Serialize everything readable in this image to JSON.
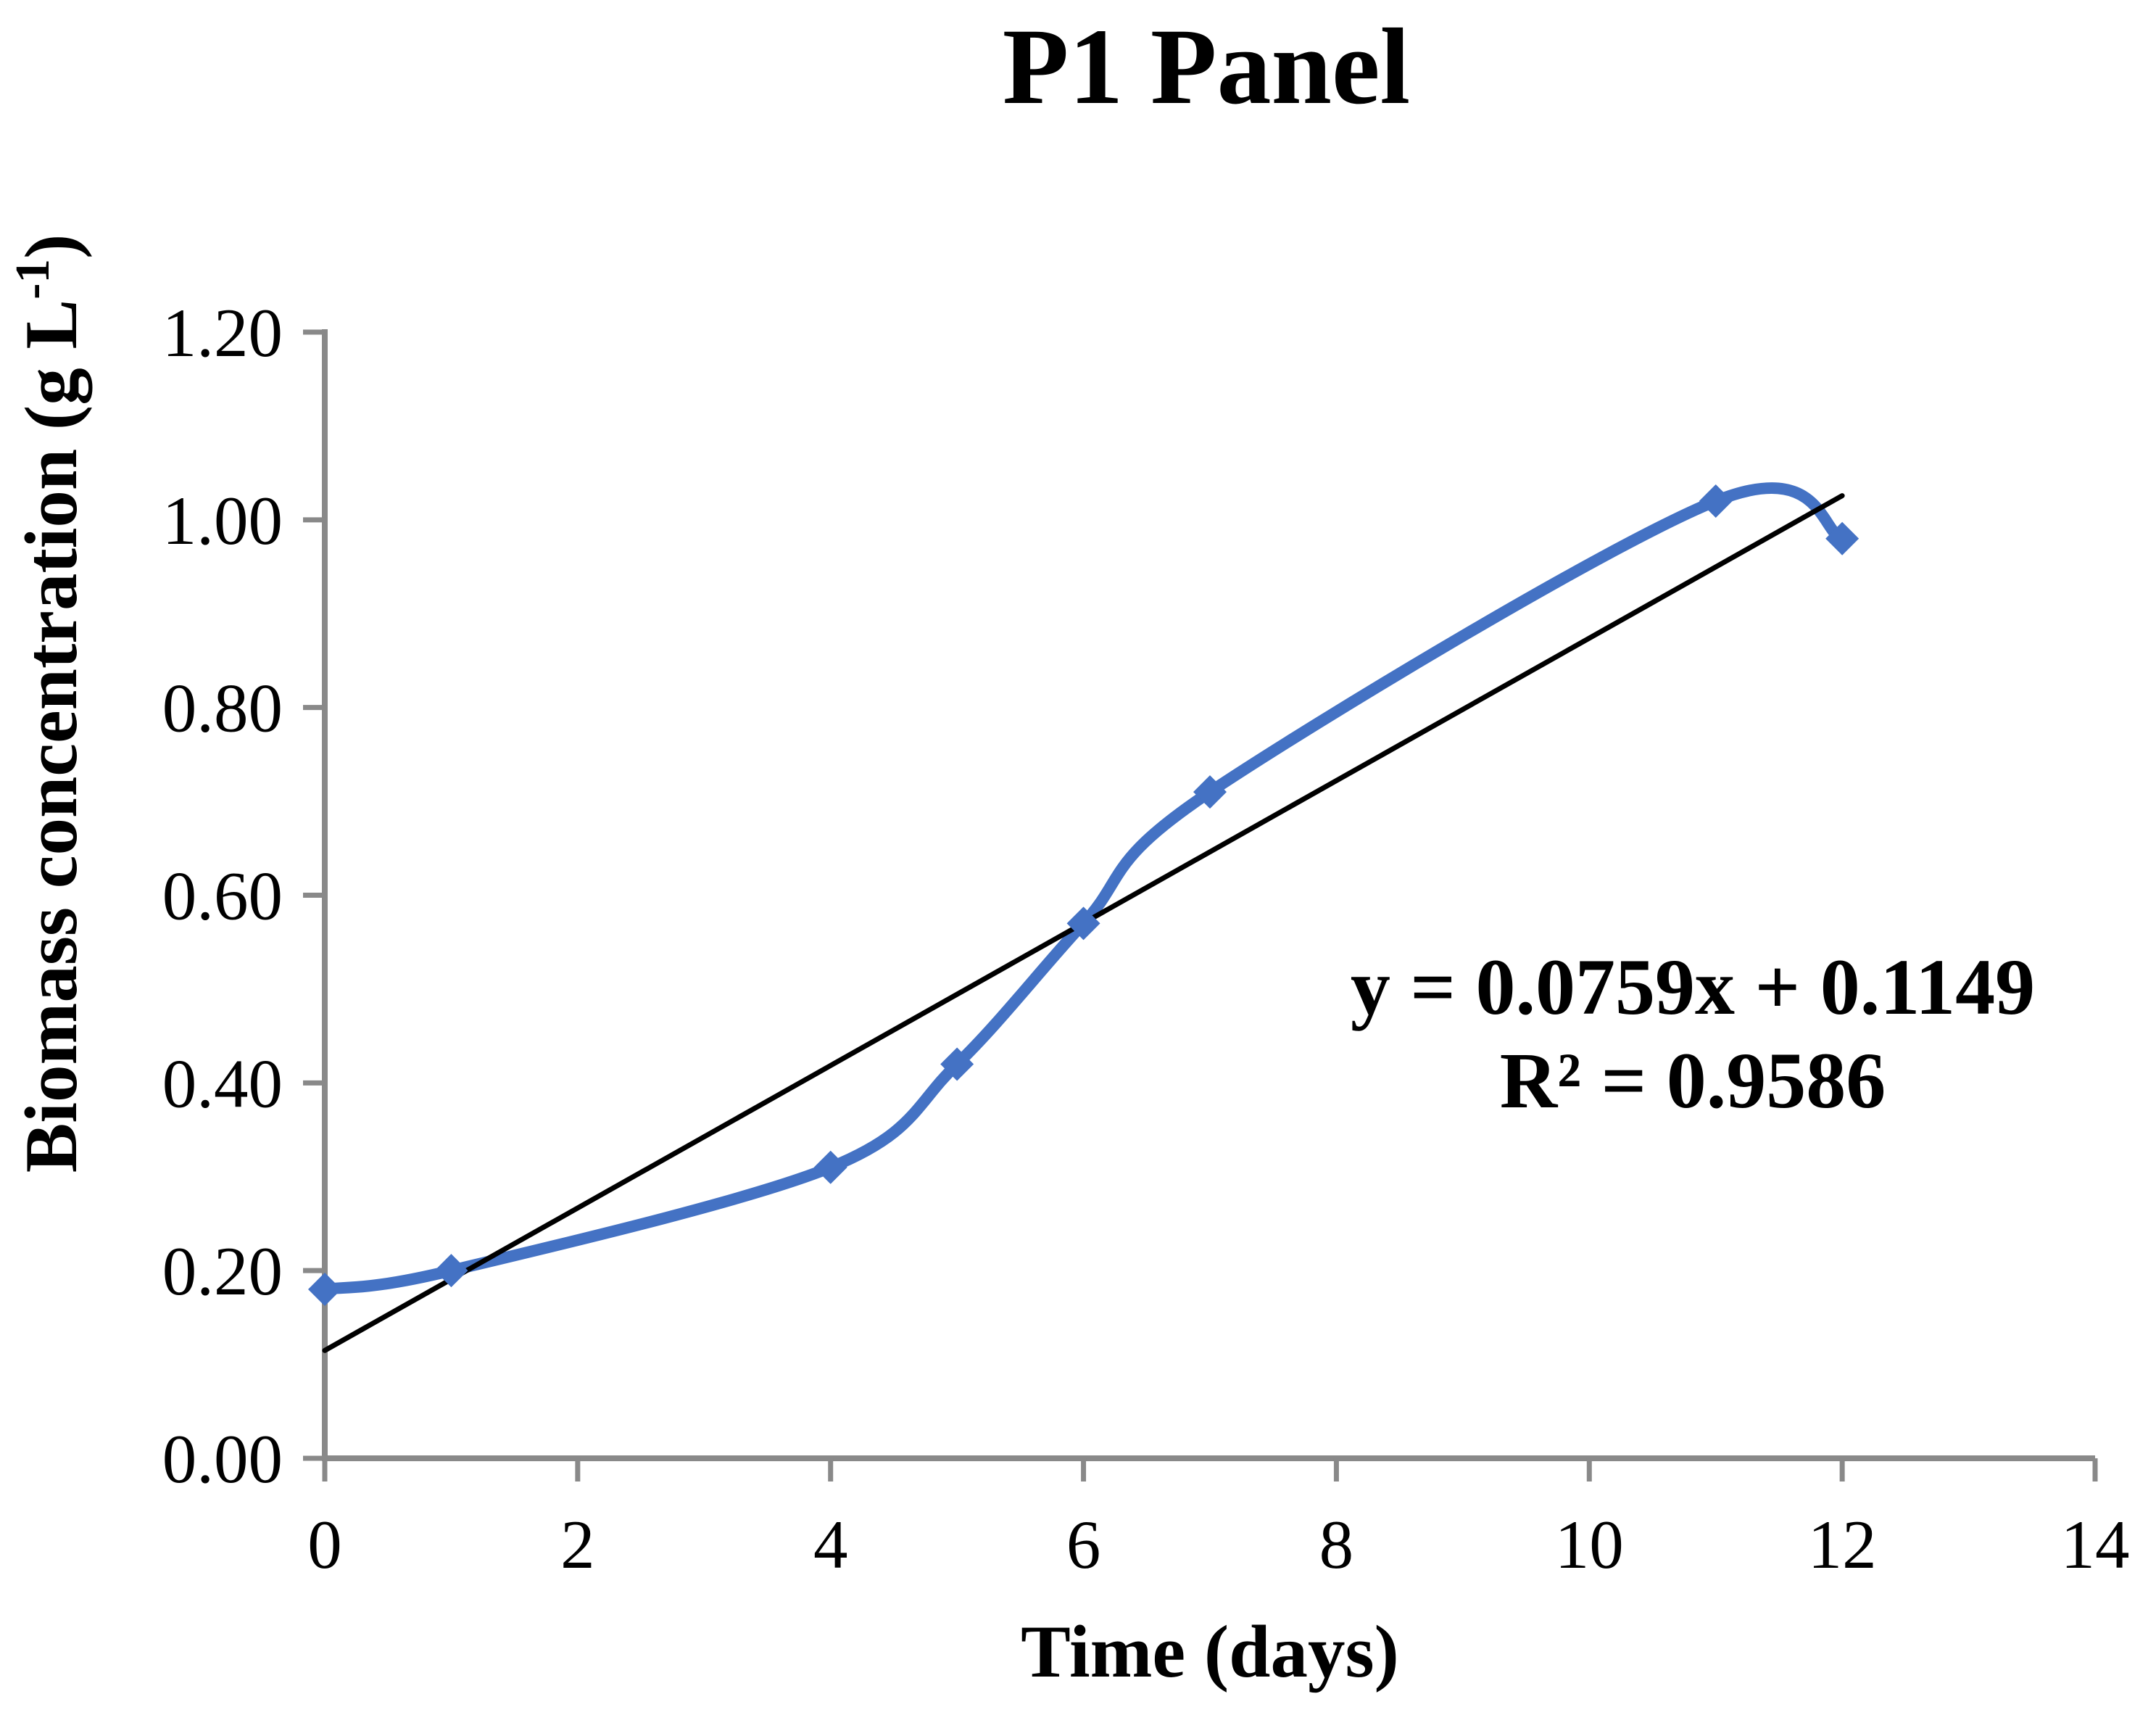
{
  "chart_data": {
    "type": "line",
    "title": "P1 Panel",
    "xlabel": "Time (days)",
    "ylabel": "Biomass concentration (g L-1)",
    "ylabel_parts": {
      "prefix": "Biomass concentration (g L",
      "superscript": "-1",
      "suffix": ")"
    },
    "x": [
      0,
      1,
      4,
      5,
      6,
      7,
      11,
      12
    ],
    "y": [
      0.18,
      0.2,
      0.31,
      0.42,
      0.57,
      0.71,
      1.02,
      0.98
    ],
    "xlim": [
      0,
      14
    ],
    "ylim": [
      0,
      1.2
    ],
    "x_tick_values": [
      0,
      2,
      4,
      6,
      8,
      10,
      12,
      14
    ],
    "x_tick_labels": [
      "0",
      "2",
      "4",
      "6",
      "8",
      "10",
      "12",
      "14"
    ],
    "y_tick_values": [
      0,
      0.2,
      0.4,
      0.6,
      0.8,
      1.0,
      1.2
    ],
    "y_tick_labels": [
      "0.00",
      "0.20",
      "0.40",
      "0.60",
      "0.80",
      "1.00",
      "1.20"
    ],
    "grid": false,
    "legend": "none",
    "marker": "diamond",
    "series_color": "#4472C4",
    "axis_color": "#898989",
    "text_color": "#000000",
    "trendline": {
      "type": "linear",
      "slope": 0.0759,
      "intercept": 0.1149,
      "x_start": 0,
      "x_end": 12,
      "color": "#000000",
      "equation_text": "y = 0.0759x + 0.1149",
      "r_squared_text": "R² = 0.9586"
    }
  }
}
